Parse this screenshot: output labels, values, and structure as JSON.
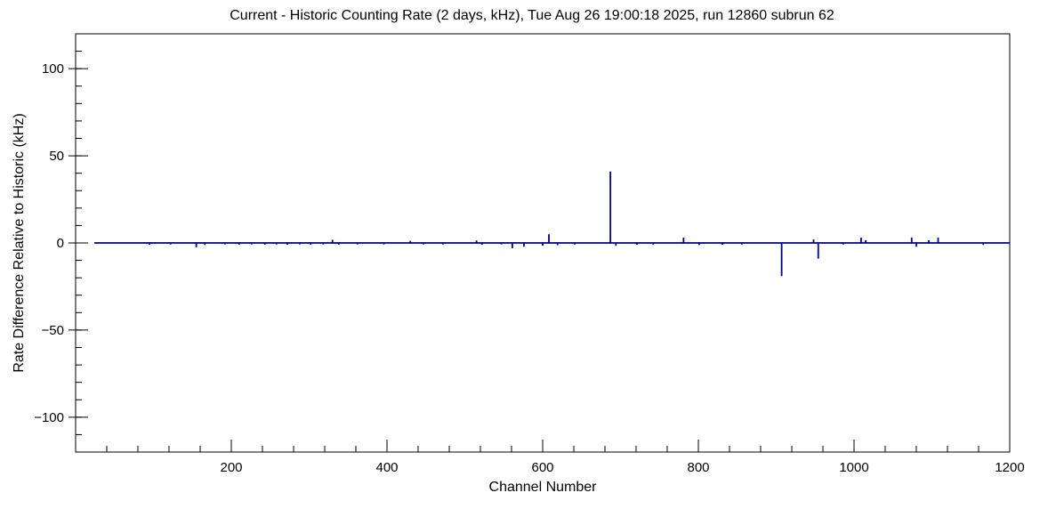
{
  "chart_data": {
    "type": "line",
    "title": "Current - Historic Counting Rate (2 days, kHz), Tue Aug 26 19:00:18 2025, run 12860 subrun 62",
    "xlabel": "Channel Number",
    "ylabel": "Rate Difference Relative to Historic (kHz)",
    "xlim": [
      0,
      1200
    ],
    "ylim": [
      -120,
      120
    ],
    "x_tick_values": [
      200,
      400,
      600,
      800,
      1000,
      1200
    ],
    "x_tick_labels": [
      "200",
      "400",
      "600",
      "800",
      "1000",
      "1200"
    ],
    "x_minor_step": 40,
    "y_tick_values": [
      -100,
      -50,
      0,
      50,
      100
    ],
    "y_tick_labels": [
      "−100",
      "−50",
      "0",
      "50",
      "100"
    ],
    "y_minor_step": 10,
    "grid": "off",
    "legend": "none",
    "line_color": "#00008b",
    "frame_color": "#000000",
    "baseline": 0,
    "x_start": 24,
    "spikes": [
      [
        95,
        -1
      ],
      [
        122,
        -0.8
      ],
      [
        155,
        -2.5
      ],
      [
        166,
        -1.2
      ],
      [
        192,
        -0.8
      ],
      [
        210,
        -1
      ],
      [
        226,
        -0.8
      ],
      [
        243,
        -1
      ],
      [
        258,
        -0.8
      ],
      [
        272,
        -1
      ],
      [
        288,
        -0.8
      ],
      [
        302,
        -1
      ],
      [
        318,
        -0.8
      ],
      [
        330,
        1.8
      ],
      [
        338,
        -1
      ],
      [
        362,
        -0.8
      ],
      [
        396,
        -0.8
      ],
      [
        430,
        1.2
      ],
      [
        447,
        -0.8
      ],
      [
        472,
        -0.8
      ],
      [
        515,
        1.4
      ],
      [
        522,
        -1
      ],
      [
        547,
        -0.8
      ],
      [
        561,
        -3
      ],
      [
        576,
        -2.2
      ],
      [
        600,
        -1.6
      ],
      [
        608,
        5
      ],
      [
        619,
        -1.3
      ],
      [
        641,
        -0.9
      ],
      [
        687,
        41
      ],
      [
        694,
        -1.6
      ],
      [
        721,
        -1
      ],
      [
        742,
        -0.9
      ],
      [
        781,
        3
      ],
      [
        801,
        -1.2
      ],
      [
        831,
        -1
      ],
      [
        856,
        -0.9
      ],
      [
        907,
        -19
      ],
      [
        948,
        2
      ],
      [
        954,
        -9
      ],
      [
        986,
        -0.9
      ],
      [
        1009,
        3
      ],
      [
        1015,
        1.6
      ],
      [
        1074,
        3
      ],
      [
        1080,
        -2.2
      ],
      [
        1096,
        1.6
      ],
      [
        1108,
        3
      ],
      [
        1166,
        -1.1
      ]
    ]
  }
}
